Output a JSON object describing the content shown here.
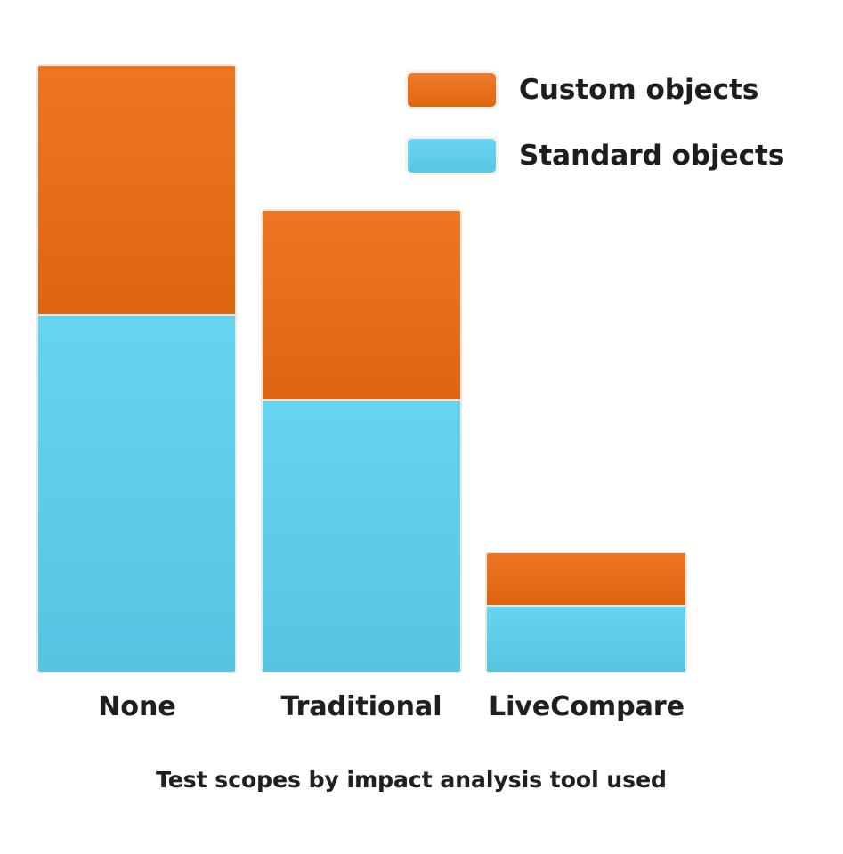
{
  "chart_data": {
    "type": "bar",
    "stacked": true,
    "orientation": "vertical",
    "categories": [
      "None",
      "Traditional",
      "LiveCompare"
    ],
    "series": [
      {
        "name": "Custom objects",
        "color": "#ed6b11",
        "values": [
          41,
          31,
          8.5
        ]
      },
      {
        "name": "Standard objects",
        "color": "#5bd1f0",
        "values": [
          59,
          45,
          11
        ]
      }
    ],
    "title": "Test scopes by impact analysis tool used",
    "xlabel": "",
    "ylabel": "",
    "ylim": [
      0,
      100
    ],
    "values_note": "relative segment heights; no value axis shown in figure",
    "grid": false,
    "axes_visible": false,
    "legend_position": "top-right",
    "colors": {
      "custom_objects": "#ed6b11",
      "standard_objects": "#5bd1f0",
      "text": "#1f1f1f",
      "background": "#ffffff"
    }
  }
}
